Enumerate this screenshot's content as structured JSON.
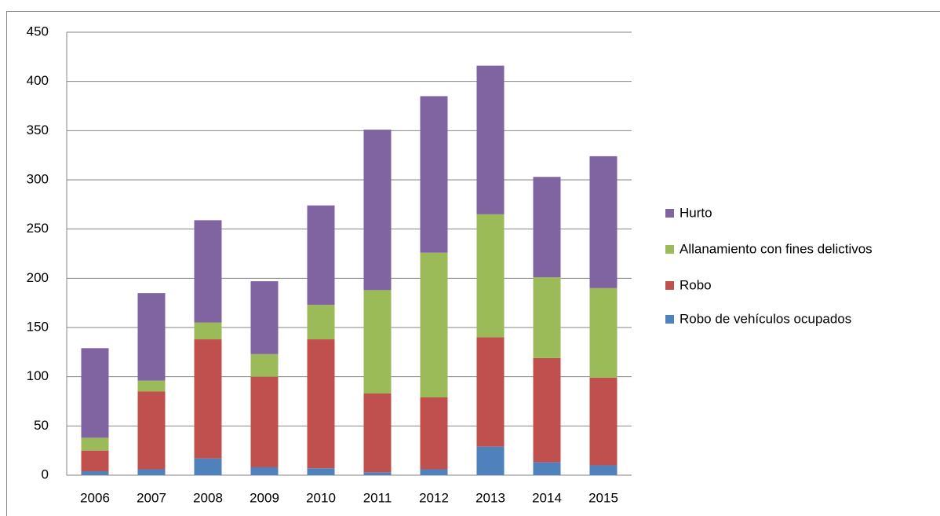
{
  "chart_data": {
    "type": "stacked_bar",
    "categories": [
      "2006",
      "2007",
      "2008",
      "2009",
      "2010",
      "2011",
      "2012",
      "2013",
      "2014",
      "2015"
    ],
    "series": [
      {
        "name": "Robo de vehículos ocupados",
        "color": "#4f81bd",
        "values": [
          4,
          6,
          17,
          8,
          7,
          3,
          6,
          29,
          13,
          10
        ]
      },
      {
        "name": "Robo",
        "color": "#c0504d",
        "values": [
          21,
          79,
          121,
          92,
          131,
          80,
          73,
          111,
          106,
          89
        ]
      },
      {
        "name": "Allanamiento con fines delictivos",
        "color": "#9bbb59",
        "values": [
          13,
          11,
          17,
          23,
          35,
          105,
          147,
          125,
          82,
          91
        ]
      },
      {
        "name": "Hurto",
        "color": "#8064a2",
        "values": [
          91,
          89,
          104,
          74,
          101,
          163,
          159,
          151,
          102,
          134
        ]
      }
    ],
    "ylim": [
      0,
      450
    ],
    "yticks": [
      0,
      50,
      100,
      150,
      200,
      250,
      300,
      350,
      400,
      450
    ],
    "grid": true,
    "legend": "right"
  }
}
